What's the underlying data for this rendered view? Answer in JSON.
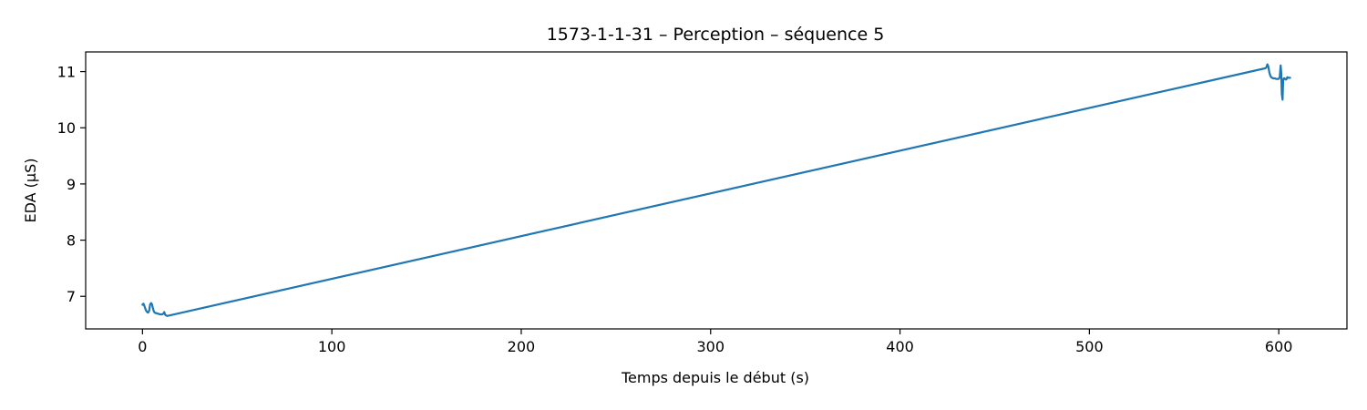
{
  "chart_data": {
    "type": "line",
    "title": "1573-1-1-31 – Perception – séquence 5",
    "xlabel": "Temps depuis le début (s)",
    "ylabel": "EDA (µS)",
    "xlim": [
      -30,
      636
    ],
    "ylim": [
      6.42,
      11.35
    ],
    "xticks": [
      0,
      100,
      200,
      300,
      400,
      500,
      600
    ],
    "yticks": [
      7,
      8,
      9,
      10,
      11
    ],
    "grid": false,
    "legend": "none",
    "series": [
      {
        "color": "#1f77b4",
        "x": [
          0,
          0.5,
          1,
          1.5,
          2,
          2.5,
          3,
          3.5,
          4,
          4.5,
          5,
          5.5,
          6,
          6.5,
          7,
          7.5,
          8,
          8.5,
          9,
          9.5,
          10,
          10.5,
          11,
          11.5,
          12,
          12.5,
          13,
          593,
          593.5,
          594,
          594.5,
          595,
          595.5,
          596,
          596.5,
          597,
          597.5,
          598,
          598.5,
          599,
          599.5,
          600,
          600.5,
          601,
          601.3,
          601.6,
          602,
          602.3,
          602.6,
          603,
          603.5,
          604,
          604.5,
          605,
          605.5,
          606
        ],
        "values": [
          6.85,
          6.87,
          6.83,
          6.78,
          6.74,
          6.72,
          6.71,
          6.74,
          6.85,
          6.88,
          6.86,
          6.79,
          6.73,
          6.71,
          6.7,
          6.7,
          6.69,
          6.69,
          6.68,
          6.68,
          6.68,
          6.68,
          6.69,
          6.72,
          6.67,
          6.66,
          6.65,
          11.06,
          11.08,
          11.13,
          11.09,
          10.99,
          10.93,
          10.9,
          10.89,
          10.88,
          10.88,
          10.88,
          10.87,
          10.87,
          10.87,
          10.87,
          10.9,
          11.11,
          10.98,
          10.6,
          10.5,
          10.84,
          10.88,
          10.88,
          10.86,
          10.86,
          10.9,
          10.89,
          10.89,
          10.89
        ]
      }
    ]
  }
}
